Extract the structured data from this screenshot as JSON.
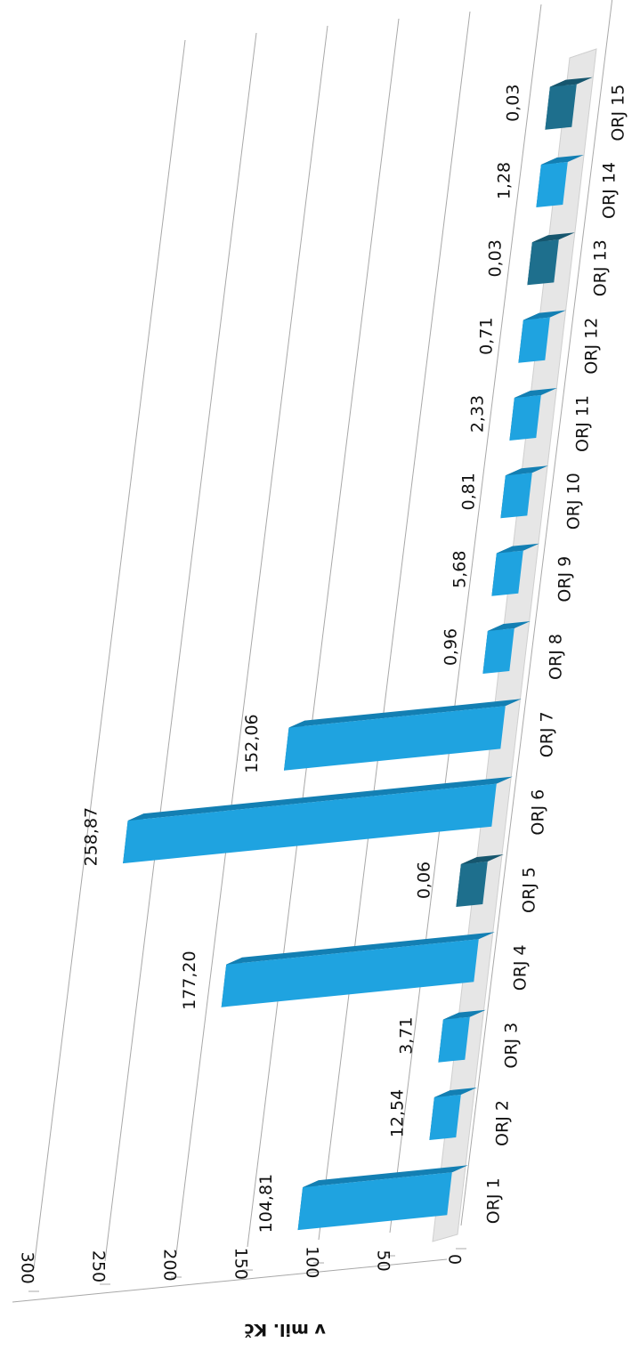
{
  "chart_data": {
    "type": "bar",
    "ylabel": "v mil. Kč",
    "ylim": [
      0,
      300
    ],
    "yticks": [
      0,
      50,
      100,
      150,
      200,
      250,
      300
    ],
    "grid": true,
    "legend": "none",
    "categories": [
      "ORJ 1",
      "ORJ 2",
      "ORJ 3",
      "ORJ 4",
      "ORJ 5",
      "ORJ 6",
      "ORJ 7",
      "ORJ 8",
      "ORJ 9",
      "ORJ 10",
      "ORJ 11",
      "ORJ 12",
      "ORJ 13",
      "ORJ 14",
      "ORJ 15"
    ],
    "values": [
      104.81,
      12.54,
      3.71,
      177.2,
      0.06,
      258.87,
      152.06,
      0.96,
      5.68,
      0.81,
      2.33,
      0.71,
      0.03,
      1.28,
      0.03
    ],
    "value_labels": [
      "104,81",
      "12,54",
      "3,71",
      "177,20",
      "0,06",
      "258,87",
      "152,06",
      "0,96",
      "5,68",
      "0,81",
      "2,33",
      "0,71",
      "0,03",
      "1,28",
      "0,03"
    ],
    "colors": {
      "bar_front": "#1fa3e0",
      "bar_side": "#137fb3",
      "bar_top": "#1a6f8f",
      "dark_front": "#1e6f8d",
      "dark_side": "#16566e",
      "dark_top": "#124a5c",
      "floor": "#e6e6e6",
      "grid": "#a8a8a8"
    },
    "dark_categories": [
      "ORJ 5",
      "ORJ 13",
      "ORJ 15"
    ]
  }
}
